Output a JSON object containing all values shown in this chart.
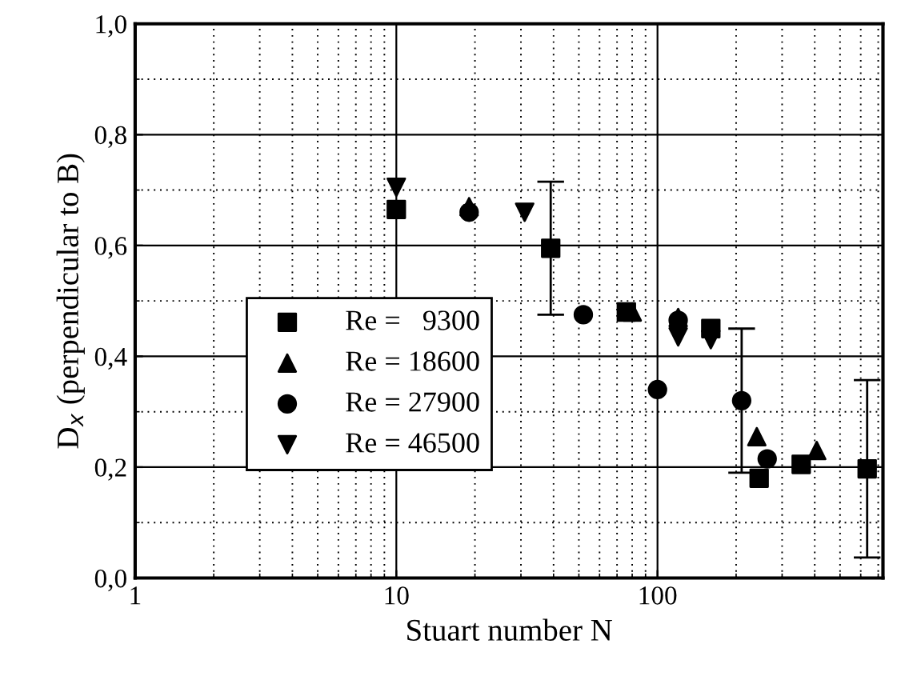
{
  "chart_data": {
    "type": "scatter",
    "xlabel": "Stuart number N",
    "ylabel": "D$_{x}$ (perpendicular to B)",
    "log": "x",
    "xlim": [
      1,
      730
    ],
    "xticks": [
      1,
      10,
      100
    ],
    "ylim": [
      0,
      1.0
    ],
    "yticks": [
      {
        "value": 0,
        "label": "0,0"
      },
      {
        "value": 0.2,
        "label": "0,2"
      },
      {
        "value": 0.4,
        "label": "0,4"
      },
      {
        "value": 0.6,
        "label": "0,6"
      },
      {
        "value": 0.8,
        "label": "0,8"
      },
      {
        "value": 1.0,
        "label": "1,0"
      }
    ],
    "grid": true,
    "legend": "center left",
    "series": [
      {
        "name": "Re =   9300",
        "color": "#000000",
        "marker": "square",
        "x": [
          10,
          39,
          76,
          160,
          245,
          355,
          635
        ],
        "values": [
          0.665,
          0.595,
          0.48,
          0.45,
          0.18,
          0.205,
          0.197
        ],
        "errors": [
          null,
          0.12,
          null,
          null,
          null,
          null,
          0.16
        ]
      },
      {
        "name": "Re = 18600",
        "color": "#000000",
        "marker": "triangle",
        "x": [
          19,
          80,
          120,
          240,
          407
        ],
        "values": [
          0.67,
          0.48,
          0.47,
          0.255,
          0.23
        ]
      },
      {
        "name": "Re = 27900",
        "color": "#000000",
        "marker": "circle",
        "x": [
          19,
          52,
          100,
          120,
          210,
          263
        ],
        "values": [
          0.66,
          0.475,
          0.34,
          0.465,
          0.32,
          0.215
        ],
        "errors": [
          null,
          null,
          null,
          null,
          0.13,
          null
        ]
      },
      {
        "name": "Re = 46500",
        "color": "#000000",
        "marker": "triangle_down",
        "x": [
          10,
          31,
          120,
          160
        ],
        "values": [
          0.705,
          0.66,
          0.435,
          0.43
        ]
      }
    ]
  }
}
